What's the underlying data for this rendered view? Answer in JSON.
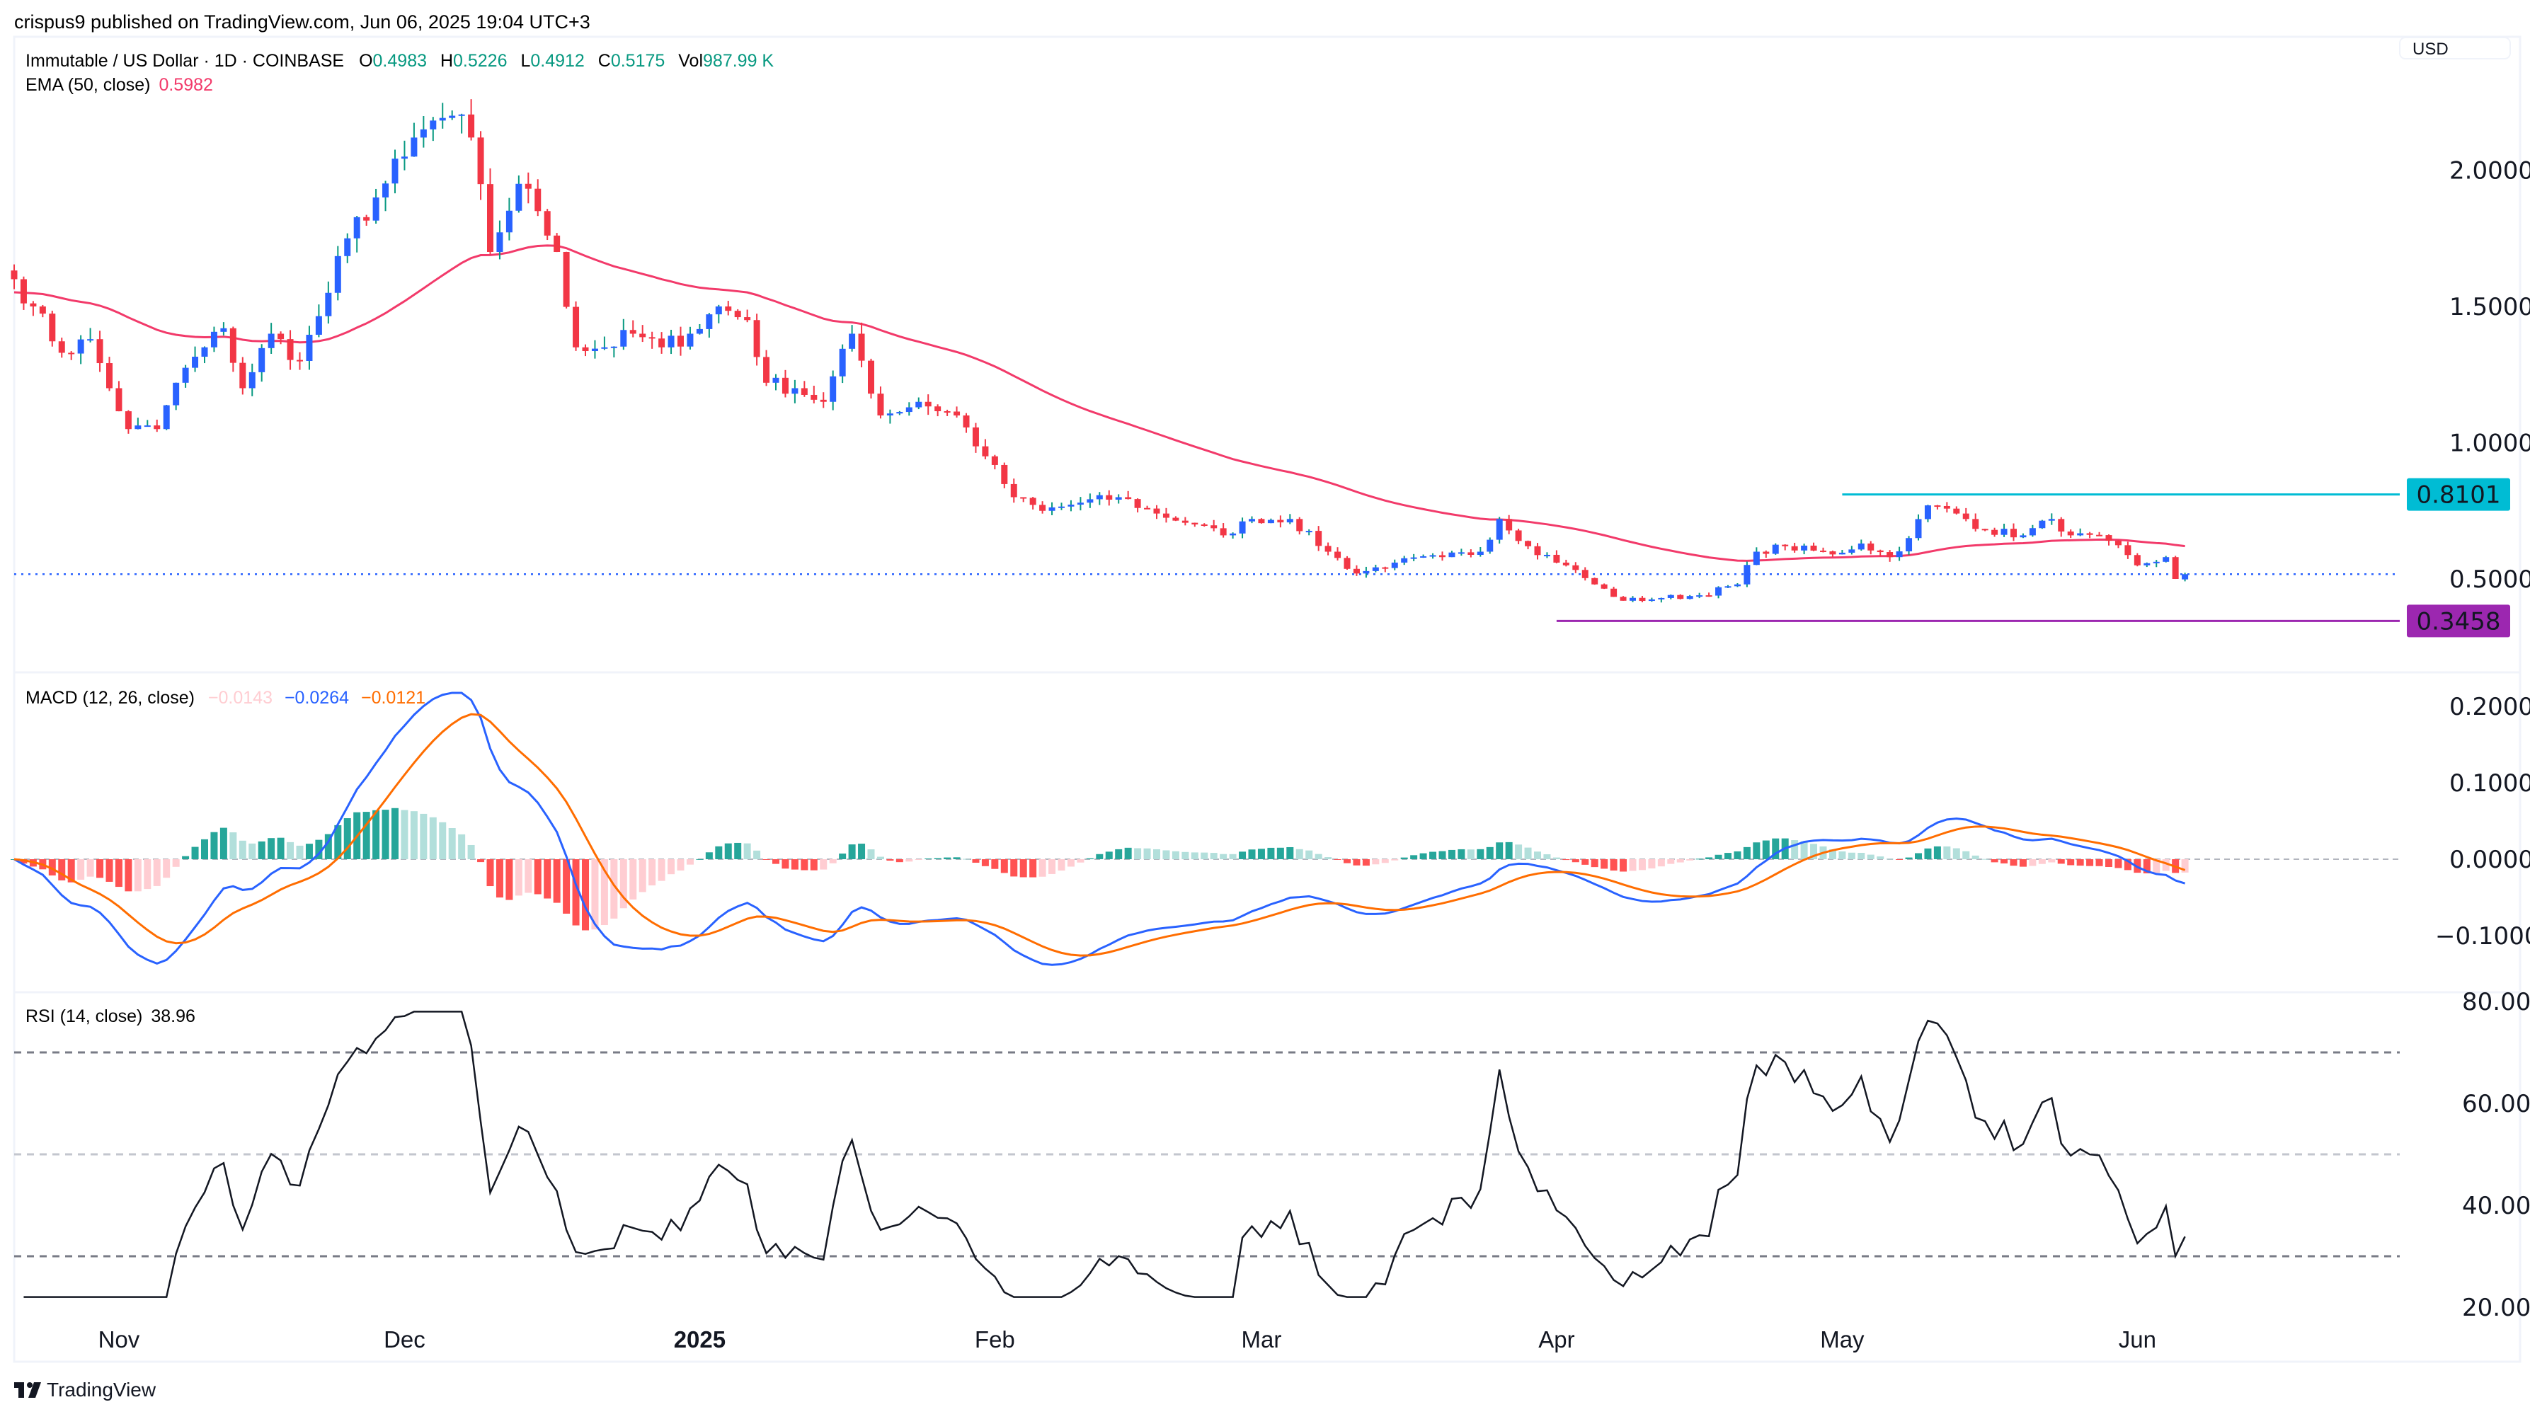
{
  "publish_note": "crispus9 published on TradingView.com, Jun 06, 2025 19:04 UTC+3",
  "legend": {
    "symbol": "Immutable / US Dollar · 1D · COINBASE",
    "o_label": "O",
    "o": "0.4983",
    "h_label": "H",
    "h": "0.5226",
    "l_label": "L",
    "l": "0.4912",
    "c_label": "C",
    "c": "0.5175",
    "vol_label": "Vol",
    "vol": "987.99 K",
    "ema_label": "EMA (50, close)",
    "ema_value": "0.5982",
    "macd_label": "MACD (12, 26, close)",
    "macd_hist": "−0.0143",
    "macd_line": "−0.0264",
    "macd_signal": "−0.0121",
    "rsi_label": "RSI (14, close)",
    "rsi_value": "38.96"
  },
  "currency_button": "USD",
  "brand": "TradingView",
  "colors": {
    "up": "#2962ff",
    "up_wick": "#089981",
    "down": "#f23645",
    "ema": "#f23a6a",
    "macd": "#2962ff",
    "signal": "#ff6d00",
    "hist_up_strong": "#26a69a",
    "hist_up_weak": "#b2dfdb",
    "hist_down_strong": "#ff5252",
    "hist_down_weak": "#ffcdd2",
    "resistance": "#00bcd4",
    "support": "#9c27b0",
    "rsi": "#131722"
  },
  "chart_data": {
    "type": "candlestick",
    "title": "Immutable / US Dollar · 1D · COINBASE",
    "start_date": "2024-10-21",
    "end_date": "2025-06-06",
    "close_keypoints": [
      [
        "2024-10-21",
        1.6
      ],
      [
        "2024-10-23",
        1.5
      ],
      [
        "2024-10-26",
        1.33
      ],
      [
        "2024-10-29",
        1.38
      ],
      [
        "2024-10-31",
        1.2
      ],
      [
        "2024-11-02",
        1.05
      ],
      [
        "2024-11-05",
        1.05
      ],
      [
        "2024-11-07",
        1.22
      ],
      [
        "2024-11-10",
        1.35
      ],
      [
        "2024-11-12",
        1.42
      ],
      [
        "2024-11-14",
        1.2
      ],
      [
        "2024-11-17",
        1.4
      ],
      [
        "2024-11-20",
        1.3
      ],
      [
        "2024-11-23",
        1.55
      ],
      [
        "2024-11-25",
        1.75
      ],
      [
        "2024-11-28",
        1.9
      ],
      [
        "2024-12-01",
        2.05
      ],
      [
        "2024-12-03",
        2.15
      ],
      [
        "2024-12-06",
        2.2
      ],
      [
        "2024-12-08",
        2.12
      ],
      [
        "2024-12-10",
        1.7
      ],
      [
        "2024-12-13",
        1.95
      ],
      [
        "2024-12-15",
        1.85
      ],
      [
        "2024-12-17",
        1.7
      ],
      [
        "2024-12-19",
        1.35
      ],
      [
        "2024-12-22",
        1.35
      ],
      [
        "2024-12-25",
        1.4
      ],
      [
        "2024-12-28",
        1.35
      ],
      [
        "2024-12-31",
        1.4
      ],
      [
        "2025-01-03",
        1.5
      ],
      [
        "2025-01-06",
        1.45
      ],
      [
        "2025-01-08",
        1.22
      ],
      [
        "2025-01-11",
        1.2
      ],
      [
        "2025-01-14",
        1.15
      ],
      [
        "2025-01-17",
        1.4
      ],
      [
        "2025-01-20",
        1.1
      ],
      [
        "2025-01-24",
        1.15
      ],
      [
        "2025-01-28",
        1.1
      ],
      [
        "2025-01-31",
        0.95
      ],
      [
        "2025-02-03",
        0.8
      ],
      [
        "2025-02-06",
        0.75
      ],
      [
        "2025-02-10",
        0.78
      ],
      [
        "2025-02-14",
        0.8
      ],
      [
        "2025-02-18",
        0.74
      ],
      [
        "2025-02-22",
        0.7
      ],
      [
        "2025-02-25",
        0.66
      ],
      [
        "2025-02-28",
        0.72
      ],
      [
        "2025-03-04",
        0.72
      ],
      [
        "2025-03-08",
        0.6
      ],
      [
        "2025-03-11",
        0.52
      ],
      [
        "2025-03-15",
        0.56
      ],
      [
        "2025-03-20",
        0.58
      ],
      [
        "2025-03-24",
        0.6
      ],
      [
        "2025-03-26",
        0.72
      ],
      [
        "2025-03-29",
        0.62
      ],
      [
        "2025-04-02",
        0.55
      ],
      [
        "2025-04-05",
        0.48
      ],
      [
        "2025-04-08",
        0.42
      ],
      [
        "2025-04-12",
        0.43
      ],
      [
        "2025-04-16",
        0.44
      ],
      [
        "2025-04-20",
        0.48
      ],
      [
        "2025-04-22",
        0.6
      ],
      [
        "2025-04-25",
        0.62
      ],
      [
        "2025-04-30",
        0.59
      ],
      [
        "2025-05-03",
        0.63
      ],
      [
        "2025-05-06",
        0.58
      ],
      [
        "2025-05-08",
        0.65
      ],
      [
        "2025-05-10",
        0.77
      ],
      [
        "2025-05-13",
        0.74
      ],
      [
        "2025-05-16",
        0.68
      ],
      [
        "2025-05-20",
        0.66
      ],
      [
        "2025-05-23",
        0.72
      ],
      [
        "2025-05-25",
        0.66
      ],
      [
        "2025-05-29",
        0.64
      ],
      [
        "2025-06-01",
        0.55
      ],
      [
        "2025-06-04",
        0.58
      ],
      [
        "2025-06-05",
        0.5
      ],
      [
        "2025-06-06",
        0.5175
      ]
    ],
    "last_price": 0.5175,
    "horizontal_levels": [
      {
        "name": "resistance",
        "value": 0.8101,
        "label": "0.8101",
        "from": "2025-05-01"
      },
      {
        "name": "support",
        "value": 0.3458,
        "label": "0.3458",
        "from": "2025-04-01"
      }
    ],
    "price_axis": {
      "ticks": [
        2.0,
        1.5,
        1.0,
        0.5
      ],
      "tick_labels": [
        "2.0000",
        "1.5000",
        "1.0000",
        "0.5000"
      ]
    },
    "macd_axis": {
      "ticks": [
        0.2,
        0.1,
        0,
        -0.1
      ],
      "tick_labels": [
        "0.2000",
        "0.1000",
        "0.0000",
        "−0.1000"
      ]
    },
    "rsi_axis": {
      "ticks": [
        80,
        60,
        40,
        20
      ],
      "tick_labels": [
        "80.00",
        "60.00",
        "40.00",
        "20.00"
      ],
      "bands": [
        70,
        50,
        30
      ]
    },
    "time_axis": [
      {
        "date": "2024-11-01",
        "label": "Nov",
        "bold": false
      },
      {
        "date": "2024-12-01",
        "label": "Dec",
        "bold": false
      },
      {
        "date": "2025-01-01",
        "label": "2025",
        "bold": true
      },
      {
        "date": "2025-02-01",
        "label": "Feb",
        "bold": false
      },
      {
        "date": "2025-03-01",
        "label": "Mar",
        "bold": false
      },
      {
        "date": "2025-04-01",
        "label": "Apr",
        "bold": false
      },
      {
        "date": "2025-05-01",
        "label": "May",
        "bold": false
      },
      {
        "date": "2025-06-01",
        "label": "Jun",
        "bold": false
      }
    ]
  }
}
